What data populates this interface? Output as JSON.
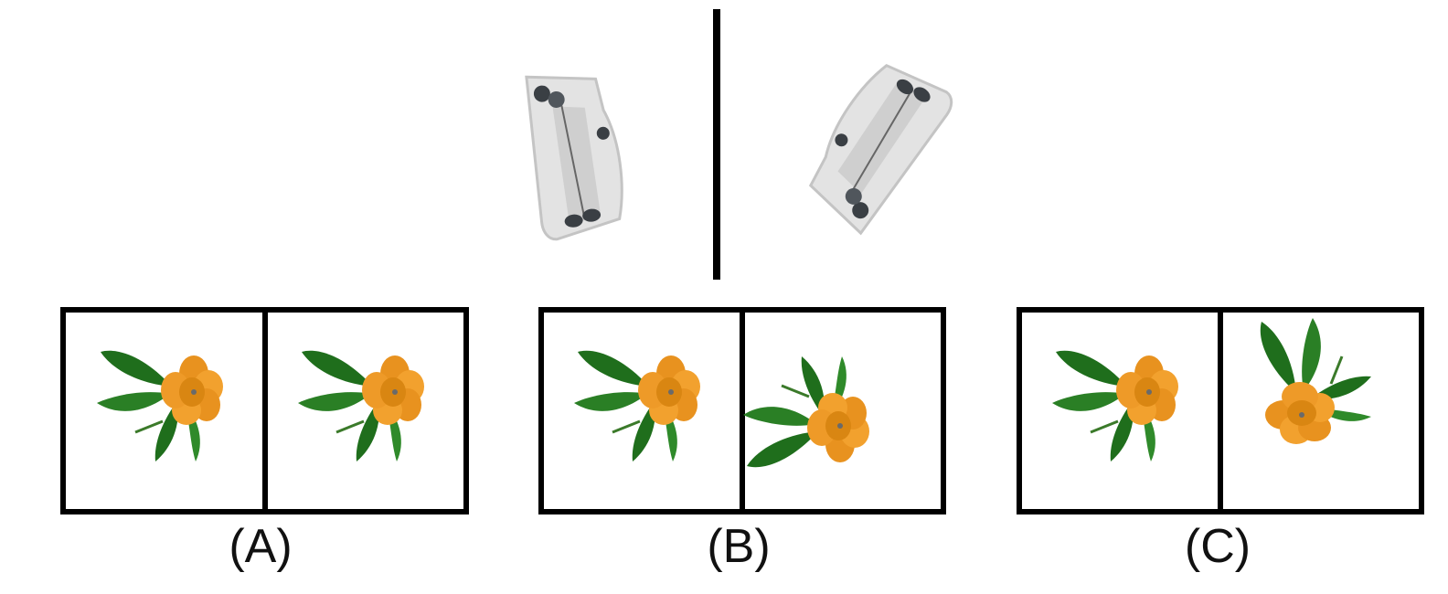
{
  "question": {
    "example_left_icon": "cushion-boat-icon",
    "example_right_icon": "cushion-boat-icon",
    "relation": "mirror"
  },
  "options": [
    {
      "label": "(A)",
      "left_icon": "flower-icon",
      "right_icon": "flower-icon"
    },
    {
      "label": "(B)",
      "left_icon": "flower-icon",
      "right_icon": "flower-icon"
    },
    {
      "label": "(C)",
      "left_icon": "flower-icon",
      "right_icon": "flower-icon"
    }
  ],
  "colors": {
    "frame": "#000000",
    "petal": "#f2a12e",
    "petal_shadow": "#d07f12",
    "leaf": "#1f6e1c",
    "leaf_light": "#2f8a2a",
    "cushion": "#e3e3e3",
    "cushion_dark": "#b9b9b9",
    "wheel": "#3a3f44"
  }
}
